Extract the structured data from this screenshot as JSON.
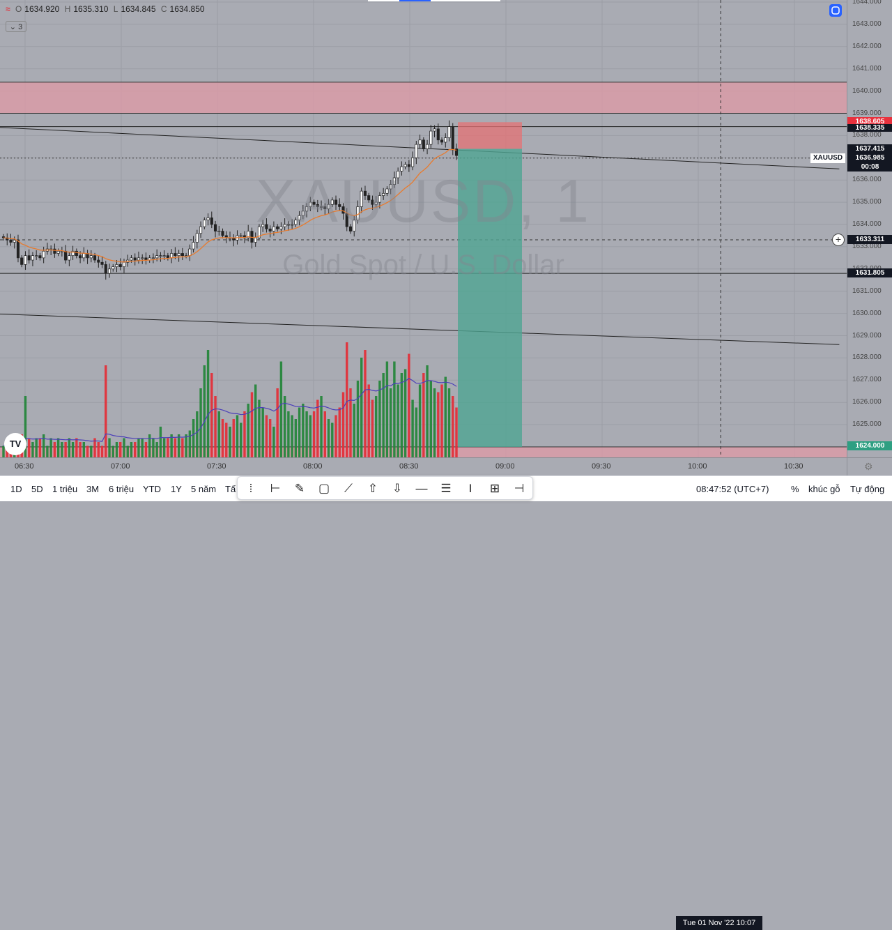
{
  "legend": {
    "icon": "wave-icon",
    "open_label": "O",
    "open": "1634.920",
    "high_label": "H",
    "high": "1635.310",
    "low_label": "L",
    "low": "1634.845",
    "close_label": "C",
    "close": "1634.850",
    "collapse_label": "3"
  },
  "watermark": {
    "symbol": "XAUUSD, 1",
    "description": "Gold Spot / U.S. Dollar"
  },
  "symbol_tag": "XAUUSD",
  "price_tags": {
    "sell_target": "1638.605",
    "prev": "1638.335",
    "last": "1637.415",
    "bid": "1636.985",
    "countdown": "00:08",
    "crosshair": "1633.311",
    "level": "1631.805",
    "stop": "1624.000"
  },
  "time_axis": {
    "date_tag": "Tue 01 Nov '22   10:07"
  },
  "bottom_bar": {
    "ranges": [
      "1D",
      "5D",
      "1 triệu",
      "3M",
      "6 triệu",
      "YTD",
      "1Y",
      "5 năm",
      "Tấ"
    ],
    "clock": "08:47:52 (UTC+7)",
    "percent": "%",
    "log": "khúc gỗ",
    "auto": "Tự động"
  },
  "draw_toolbar": {
    "tools": [
      "drag-handle-icon",
      "long-position-icon",
      "brush-icon",
      "rectangle-icon",
      "trend-line-icon",
      "arrow-up-icon",
      "arrow-down-icon",
      "horizontal-line-icon",
      "fib-retracement-icon",
      "date-range-icon",
      "price-range-icon",
      "date-price-range-icon"
    ]
  },
  "colors": {
    "up": "#26863c",
    "down": "#e2303a",
    "ma": "#e87b2e",
    "vol_ma": "#4b3fb8",
    "zone": "#e09aa6",
    "target": "#4fa592",
    "stop": "#e57174",
    "sync": "#2962ff"
  },
  "chart_data": {
    "type": "candlestick",
    "symbol": "XAUUSD",
    "interval": "1",
    "ylim": [
      1623.6,
      1644.2
    ],
    "x_ticks": [
      "06:30",
      "07:00",
      "07:30",
      "08:00",
      "08:30",
      "09:00",
      "09:30",
      "10:00",
      "10:30"
    ],
    "y_ticks": [
      "1644.000",
      "1643.000",
      "1642.000",
      "1641.000",
      "1640.000",
      "1639.000",
      "1638.000",
      "1637.000",
      "1636.000",
      "1635.000",
      "1634.000",
      "1633.000",
      "1632.000",
      "1631.000",
      "1630.000",
      "1629.000",
      "1628.000",
      "1627.000",
      "1626.000",
      "1625.000",
      "1624.000"
    ],
    "resistance_zone": [
      1639.0,
      1640.4
    ],
    "support_zone": [
      1623.6,
      1624.0
    ],
    "horizontal_lines": [
      1638.4,
      1631.8
    ],
    "trend_lines": [
      {
        "from": [
          "06:17",
          1638.4
        ],
        "to": [
          "10:44",
          1636.5
        ]
      },
      {
        "from": [
          "06:17",
          1630.0
        ],
        "to": [
          "10:44",
          1628.6
        ]
      }
    ],
    "position": {
      "type": "short",
      "entry": 1637.4,
      "stop": 1638.6,
      "target": 1624.0,
      "start": "08:45",
      "end": "09:05"
    },
    "series_close": [
      1633.4,
      1633.3,
      1633.2,
      1633.3,
      1632.5,
      1632.2,
      1632.6,
      1632.4,
      1632.6,
      1632.6,
      1632.5,
      1632.8,
      1632.9,
      1632.9,
      1632.7,
      1632.8,
      1632.8,
      1632.4,
      1632.6,
      1632.8,
      1632.6,
      1632.5,
      1632.7,
      1632.5,
      1632.6,
      1632.4,
      1632.3,
      1632.2,
      1631.8,
      1632.0,
      1632.1,
      1632.2,
      1632.1,
      1632.3,
      1632.4,
      1632.5,
      1632.4,
      1632.5,
      1632.5,
      1632.4,
      1632.5,
      1632.5,
      1632.6,
      1632.6,
      1632.6,
      1632.5,
      1632.7,
      1632.6,
      1632.7,
      1632.6,
      1632.6,
      1632.9,
      1633.2,
      1633.6,
      1633.9,
      1634.2,
      1634.3,
      1634.0,
      1633.7,
      1633.7,
      1633.5,
      1633.4,
      1633.4,
      1633.3,
      1633.5,
      1633.5,
      1633.4,
      1633.7,
      1633.2,
      1633.4,
      1633.9,
      1634.0,
      1633.8,
      1633.7,
      1633.9,
      1633.8,
      1633.9,
      1634.0,
      1634.0,
      1634.0,
      1634.2,
      1634.4,
      1634.6,
      1634.8,
      1635.0,
      1634.9,
      1634.8,
      1634.8,
      1634.7,
      1634.9,
      1635.1,
      1634.9,
      1634.8,
      1634.5,
      1633.9,
      1633.7,
      1634.2,
      1634.8,
      1635.5,
      1635.3,
      1635.1,
      1634.9,
      1635.0,
      1635.3,
      1635.4,
      1635.6,
      1635.8,
      1636.1,
      1636.4,
      1636.6,
      1636.7,
      1636.6,
      1637.0,
      1637.6,
      1637.8,
      1637.4,
      1637.6,
      1638.2,
      1638.3,
      1637.8,
      1637.7,
      1637.9,
      1638.4,
      1637.4,
      1637.1
    ],
    "volume": [
      3,
      4,
      4,
      5,
      3,
      6,
      16,
      5,
      4,
      5,
      5,
      6,
      3,
      5,
      4,
      5,
      4,
      4,
      5,
      4,
      5,
      4,
      4,
      3,
      3,
      5,
      4,
      3,
      24,
      5,
      3,
      4,
      4,
      5,
      3,
      4,
      4,
      5,
      5,
      4,
      6,
      5,
      4,
      8,
      5,
      5,
      6,
      5,
      6,
      5,
      6,
      7,
      10,
      12,
      18,
      24,
      28,
      22,
      16,
      12,
      10,
      9,
      8,
      10,
      11,
      9,
      12,
      14,
      17,
      19,
      15,
      13,
      11,
      10,
      8,
      18,
      25,
      16,
      12,
      11,
      10,
      13,
      14,
      12,
      11,
      12,
      15,
      16,
      12,
      10,
      9,
      11,
      13,
      17,
      30,
      18,
      14,
      20,
      26,
      28,
      19,
      15,
      16,
      20,
      22,
      25,
      18,
      25,
      19,
      22,
      23,
      27,
      15,
      13,
      19,
      22,
      24,
      20,
      18,
      17,
      19,
      21,
      18,
      16,
      13
    ]
  }
}
